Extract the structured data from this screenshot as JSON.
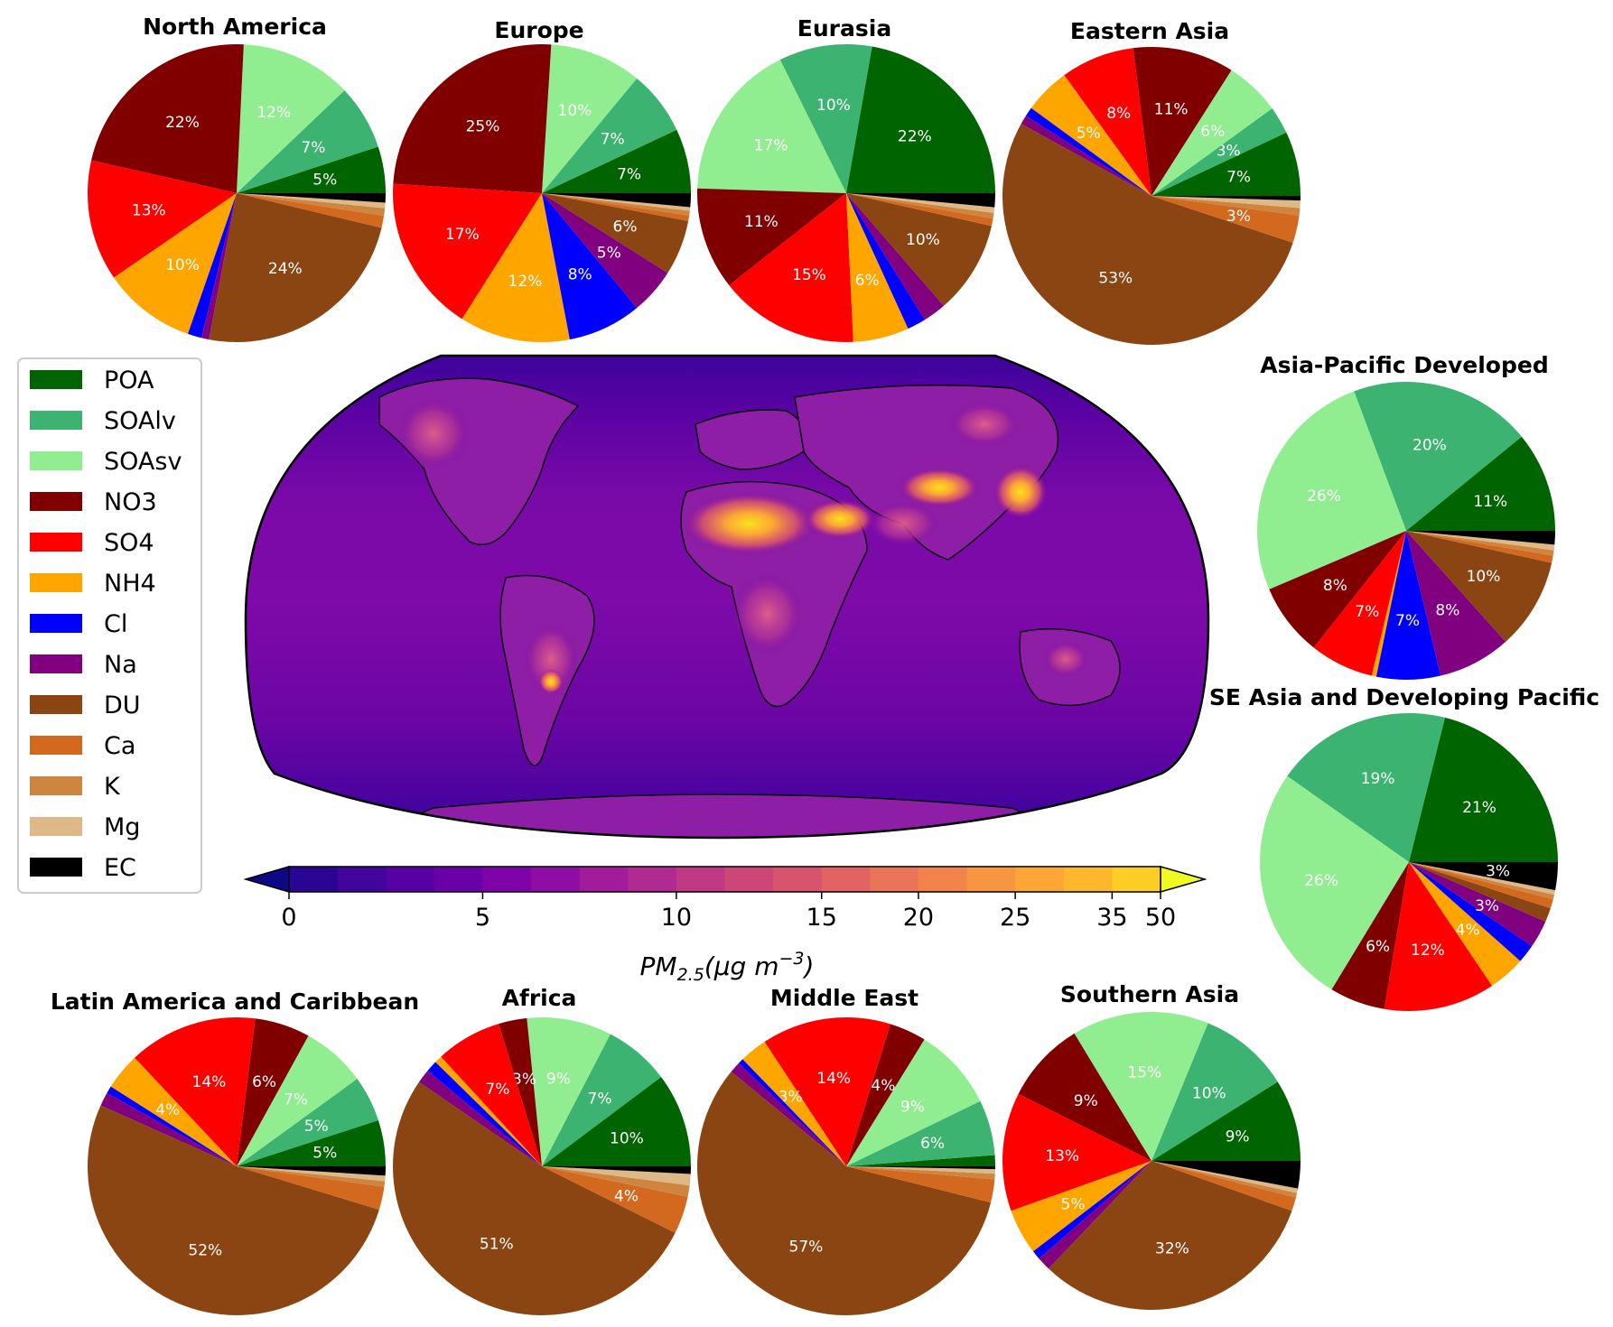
{
  "colors": {
    "POA": "#006400",
    "SOAlv": "#3cb371",
    "SOAsv": "#90ee90",
    "NO3": "#800000",
    "SO4": "#ff0000",
    "NH4": "#ffa500",
    "Cl": "#0000ff",
    "Na": "#800080",
    "DU": "#8b4513",
    "Ca": "#d2691e",
    "K": "#cd853f",
    "Mg": "#deb887",
    "EC": "#000000"
  },
  "legend": {
    "items": [
      "POA",
      "SOAlv",
      "SOAsv",
      "NO3",
      "SO4",
      "NH4",
      "Cl",
      "Na",
      "DU",
      "Ca",
      "K",
      "Mg",
      "EC"
    ]
  },
  "colorbar": {
    "ticks": [
      "0",
      "5",
      "10",
      "15",
      "20",
      "25",
      "35",
      "50"
    ],
    "label_main": "PM",
    "label_sub": "2.5",
    "label_rest": "(μg m",
    "label_sup": "−3",
    "label_close": ")",
    "colormap": "plasma",
    "extend": "both"
  },
  "map": {
    "projection": "Robinson",
    "variable": "PM2.5"
  },
  "chart_data": [
    {
      "type": "pie",
      "title": "North America",
      "categories": [
        "POA",
        "SOAlv",
        "SOAsv",
        "NO3",
        "SO4",
        "NH4",
        "Cl",
        "Na",
        "DU",
        "Ca",
        "K",
        "Mg",
        "EC"
      ],
      "values": [
        5,
        7,
        12,
        22,
        13,
        10,
        1.5,
        0.8,
        24,
        1.3,
        0.8,
        0.6,
        1.0
      ],
      "labels": [
        "5%",
        "7%",
        "12%",
        "22%",
        "13%",
        "10%",
        "",
        "",
        "24%",
        "",
        "",
        "",
        ""
      ]
    },
    {
      "type": "pie",
      "title": "Europe",
      "categories": [
        "POA",
        "SOAlv",
        "SOAsv",
        "NO3",
        "SO4",
        "NH4",
        "Cl",
        "Na",
        "DU",
        "Ca",
        "K",
        "Mg",
        "EC"
      ],
      "values": [
        7,
        7,
        10,
        25,
        17,
        12,
        8,
        5,
        6,
        0.6,
        0.5,
        0.4,
        1.5
      ],
      "labels": [
        "7%",
        "7%",
        "10%",
        "25%",
        "17%",
        "12%",
        "8%",
        "5%",
        "6%",
        "",
        "",
        "",
        ""
      ]
    },
    {
      "type": "pie",
      "title": "Eurasia",
      "categories": [
        "POA",
        "SOAlv",
        "SOAsv",
        "NO3",
        "SO4",
        "NH4",
        "Cl",
        "Na",
        "DU",
        "Ca",
        "K",
        "Mg",
        "EC"
      ],
      "values": [
        22,
        10,
        17,
        11,
        15,
        6,
        2,
        2.5,
        10,
        0.8,
        0.6,
        0.6,
        1.5
      ],
      "labels": [
        "22%",
        "10%",
        "17%",
        "11%",
        "15%",
        "6%",
        "",
        "",
        "10%",
        "",
        "",
        "",
        ""
      ]
    },
    {
      "type": "pie",
      "title": "Eastern Asia",
      "categories": [
        "POA",
        "SOAlv",
        "SOAsv",
        "NO3",
        "SO4",
        "NH4",
        "Cl",
        "Na",
        "DU",
        "Ca",
        "K",
        "Mg",
        "EC"
      ],
      "values": [
        7,
        3,
        6,
        11,
        8,
        5,
        1,
        1,
        53,
        3,
        0.8,
        0.8,
        0.5
      ],
      "labels": [
        "7%",
        "3%",
        "6%",
        "11%",
        "8%",
        "5%",
        "",
        "",
        "53%",
        "3%",
        "",
        "",
        ""
      ]
    },
    {
      "type": "pie",
      "title": "Asia-Pacific Developed",
      "categories": [
        "POA",
        "SOAlv",
        "SOAsv",
        "NO3",
        "SO4",
        "NH4",
        "Cl",
        "Na",
        "DU",
        "Ca",
        "K",
        "Mg",
        "EC"
      ],
      "values": [
        11,
        20,
        26,
        8,
        7,
        0.5,
        7,
        8,
        10,
        0.8,
        0.6,
        0.6,
        1.5
      ],
      "labels": [
        "11%",
        "20%",
        "26%",
        "8%",
        "7%",
        "",
        "7%",
        "8%",
        "10%",
        "",
        "",
        "",
        ""
      ]
    },
    {
      "type": "pie",
      "title": "SE Asia and Developing Pacific",
      "categories": [
        "POA",
        "SOAlv",
        "SOAsv",
        "NO3",
        "SO4",
        "NH4",
        "Cl",
        "Na",
        "DU",
        "Ca",
        "K",
        "Mg",
        "EC"
      ],
      "values": [
        21,
        19,
        26,
        6,
        12,
        4,
        2,
        3,
        1.5,
        1,
        0.5,
        0.5,
        3
      ],
      "labels": [
        "21%",
        "19%",
        "26%",
        "6%",
        "12%",
        "4%",
        "",
        "3%",
        "",
        "",
        "",
        "",
        "3%"
      ]
    },
    {
      "type": "pie",
      "title": "Latin America and Caribbean",
      "categories": [
        "POA",
        "SOAlv",
        "SOAsv",
        "NO3",
        "SO4",
        "NH4",
        "Cl",
        "Na",
        "DU",
        "Ca",
        "K",
        "Mg",
        "EC"
      ],
      "values": [
        5,
        5,
        7,
        6,
        14,
        4,
        0.8,
        1.5,
        52,
        2.5,
        0.6,
        0.6,
        1.0
      ],
      "labels": [
        "5%",
        "5%",
        "7%",
        "6%",
        "14%",
        "4%",
        "",
        "",
        "52%",
        "",
        "",
        "",
        ""
      ]
    },
    {
      "type": "pie",
      "title": "Africa",
      "categories": [
        "POA",
        "SOAlv",
        "SOAsv",
        "NO3",
        "SO4",
        "NH4",
        "Cl",
        "Na",
        "DU",
        "Ca",
        "K",
        "Mg",
        "EC"
      ],
      "values": [
        10,
        7,
        9,
        3,
        7,
        0.8,
        1.2,
        1.5,
        51,
        4,
        1.2,
        1.2,
        0.8
      ],
      "labels": [
        "10%",
        "7%",
        "9%",
        "3%",
        "7%",
        "",
        "",
        "",
        "51%",
        "4%",
        "",
        "",
        ""
      ]
    },
    {
      "type": "pie",
      "title": "Middle East",
      "categories": [
        "POA",
        "SOAlv",
        "SOAsv",
        "NO3",
        "SO4",
        "NH4",
        "Cl",
        "Na",
        "DU",
        "Ca",
        "K",
        "Mg",
        "EC"
      ],
      "values": [
        1.2,
        6,
        9,
        4,
        14,
        3,
        0.6,
        1.2,
        57,
        2.5,
        0.6,
        0.5,
        0.3
      ],
      "labels": [
        "",
        "6%",
        "9%",
        "4%",
        "14%",
        "3%",
        "",
        "",
        "57%",
        "",
        "",
        "",
        ""
      ]
    },
    {
      "type": "pie",
      "title": "Southern Asia",
      "categories": [
        "POA",
        "SOAlv",
        "SOAsv",
        "NO3",
        "SO4",
        "NH4",
        "Cl",
        "Na",
        "DU",
        "Ca",
        "K",
        "Mg",
        "EC"
      ],
      "values": [
        9,
        10,
        15,
        9,
        13,
        5,
        1,
        1.5,
        32,
        1.5,
        0.5,
        0.5,
        3
      ],
      "labels": [
        "9%",
        "10%",
        "15%",
        "9%",
        "13%",
        "5%",
        "",
        "",
        "32%",
        "",
        "",
        "",
        ""
      ]
    }
  ]
}
